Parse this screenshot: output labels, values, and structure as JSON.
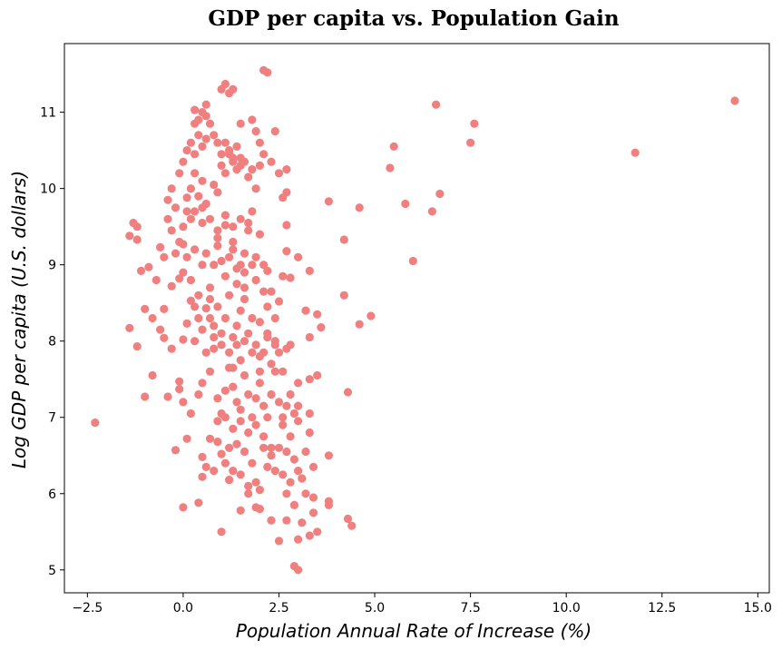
{
  "chart_data": {
    "type": "scatter",
    "title": "GDP per capita vs. Population Gain",
    "xlabel": "Population Annual Rate of Increase (%)",
    "ylabel": "Log GDP per capita (U.S. dollars)",
    "xlim": [
      -3.1,
      15.3
    ],
    "ylim": [
      4.7,
      11.9
    ],
    "x_ticks": [
      -2.5,
      0.0,
      2.5,
      5.0,
      7.5,
      10.0,
      12.5,
      15.0
    ],
    "x_tick_labels": [
      "−2.5",
      "0.0",
      "2.5",
      "5.0",
      "7.5",
      "10.0",
      "12.5",
      "15.0"
    ],
    "y_ticks": [
      5,
      6,
      7,
      8,
      9,
      10,
      11
    ],
    "y_tick_labels": [
      "5",
      "6",
      "7",
      "8",
      "9",
      "10",
      "11"
    ],
    "grid": false,
    "marker_color": "#f08080",
    "series": [
      {
        "name": "countries",
        "points": [
          [
            -2.3,
            6.93
          ],
          [
            -1.4,
            9.38
          ],
          [
            -1.3,
            9.55
          ],
          [
            -1.2,
            9.5
          ],
          [
            -1.2,
            9.33
          ],
          [
            -1.1,
            8.92
          ],
          [
            -1.0,
            8.42
          ],
          [
            -0.9,
            8.97
          ],
          [
            -0.8,
            8.3
          ],
          [
            -0.7,
            8.8
          ],
          [
            -0.6,
            9.23
          ],
          [
            -0.5,
            9.1
          ],
          [
            -0.4,
            9.85
          ],
          [
            -0.4,
            9.6
          ],
          [
            -0.3,
            9.45
          ],
          [
            -0.2,
            9.75
          ],
          [
            -0.1,
            9.3
          ],
          [
            0.0,
            9.5
          ],
          [
            0.1,
            9.7
          ],
          [
            0.2,
            9.6
          ],
          [
            -1.4,
            8.17
          ],
          [
            -1.2,
            7.93
          ],
          [
            -1.0,
            7.27
          ],
          [
            -0.8,
            7.55
          ],
          [
            -0.6,
            8.15
          ],
          [
            -0.5,
            8.04
          ],
          [
            -0.4,
            7.27
          ],
          [
            -0.3,
            7.9
          ],
          [
            -0.1,
            7.47
          ],
          [
            -0.1,
            7.37
          ],
          [
            -0.2,
            6.57
          ],
          [
            0.0,
            8.02
          ],
          [
            0.1,
            8.23
          ],
          [
            0.2,
            8.53
          ],
          [
            0.3,
            8.0
          ],
          [
            0.4,
            8.3
          ],
          [
            0.5,
            8.15
          ],
          [
            0.6,
            8.43
          ],
          [
            0.7,
            8.3
          ],
          [
            0.8,
            8.2
          ],
          [
            0.9,
            8.45
          ],
          [
            1.0,
            8.1
          ],
          [
            1.1,
            8.3
          ],
          [
            1.2,
            8.6
          ],
          [
            1.3,
            8.05
          ],
          [
            1.4,
            8.2
          ],
          [
            1.5,
            8.4
          ],
          [
            1.6,
            8.55
          ],
          [
            1.7,
            8.1
          ],
          [
            1.8,
            8.3
          ],
          [
            0.0,
            8.9
          ],
          [
            0.1,
            9.1
          ],
          [
            0.2,
            8.8
          ],
          [
            0.3,
            9.2
          ],
          [
            0.4,
            8.6
          ],
          [
            0.5,
            9.0
          ],
          [
            0.6,
            9.15
          ],
          [
            0.7,
            8.7
          ],
          [
            0.8,
            9.0
          ],
          [
            0.9,
            9.25
          ],
          [
            1.0,
            9.05
          ],
          [
            1.1,
            8.85
          ],
          [
            1.2,
            9.1
          ],
          [
            1.3,
            9.3
          ],
          [
            1.4,
            8.95
          ],
          [
            1.5,
            9.0
          ],
          [
            1.6,
            8.7
          ],
          [
            1.7,
            9.45
          ],
          [
            1.8,
            9.0
          ],
          [
            1.9,
            8.8
          ],
          [
            0.0,
            10.35
          ],
          [
            0.1,
            10.5
          ],
          [
            0.2,
            10.6
          ],
          [
            0.3,
            10.45
          ],
          [
            0.4,
            10.7
          ],
          [
            0.5,
            10.55
          ],
          [
            0.6,
            10.65
          ],
          [
            0.3,
            10.85
          ],
          [
            0.4,
            10.9
          ],
          [
            0.5,
            11.0
          ],
          [
            0.6,
            10.95
          ],
          [
            0.7,
            10.85
          ],
          [
            0.8,
            10.7
          ],
          [
            0.9,
            10.6
          ],
          [
            1.0,
            10.45
          ],
          [
            1.1,
            10.6
          ],
          [
            1.2,
            10.5
          ],
          [
            1.3,
            10.35
          ],
          [
            1.4,
            10.55
          ],
          [
            1.5,
            10.4
          ],
          [
            0.3,
            11.03
          ],
          [
            0.6,
            11.1
          ],
          [
            1.0,
            11.3
          ],
          [
            1.1,
            11.37
          ],
          [
            1.2,
            11.25
          ],
          [
            1.3,
            11.3
          ],
          [
            1.5,
            10.85
          ],
          [
            1.8,
            10.9
          ],
          [
            1.9,
            10.75
          ],
          [
            2.0,
            10.6
          ],
          [
            0.2,
            10.0
          ],
          [
            0.3,
            10.2
          ],
          [
            0.4,
            9.9
          ],
          [
            0.5,
            10.1
          ],
          [
            0.6,
            9.8
          ],
          [
            0.8,
            10.05
          ],
          [
            0.9,
            9.95
          ],
          [
            1.0,
            10.3
          ],
          [
            1.1,
            10.2
          ],
          [
            1.2,
            10.45
          ],
          [
            1.3,
            10.4
          ],
          [
            1.4,
            10.25
          ],
          [
            1.5,
            10.3
          ],
          [
            1.6,
            10.35
          ],
          [
            1.7,
            10.15
          ],
          [
            1.8,
            10.25
          ],
          [
            1.9,
            10.0
          ],
          [
            2.0,
            10.3
          ],
          [
            2.1,
            10.45
          ],
          [
            2.3,
            10.35
          ],
          [
            2.1,
            11.55
          ],
          [
            2.2,
            11.52
          ],
          [
            2.4,
            10.75
          ],
          [
            2.5,
            10.2
          ],
          [
            2.6,
            9.88
          ],
          [
            2.7,
            10.25
          ],
          [
            2.7,
            9.95
          ],
          [
            2.7,
            9.52
          ],
          [
            2.7,
            9.18
          ],
          [
            2.8,
            8.83
          ],
          [
            3.0,
            9.1
          ],
          [
            2.6,
            8.85
          ],
          [
            2.5,
            8.52
          ],
          [
            2.4,
            8.3
          ],
          [
            2.3,
            8.65
          ],
          [
            2.2,
            8.45
          ],
          [
            2.1,
            8.65
          ],
          [
            2.0,
            8.25
          ],
          [
            2.2,
            8.1
          ],
          [
            2.4,
            8.0
          ],
          [
            0.0,
            7.2
          ],
          [
            0.2,
            7.05
          ],
          [
            0.4,
            7.3
          ],
          [
            0.5,
            7.45
          ],
          [
            0.6,
            7.85
          ],
          [
            0.7,
            7.6
          ],
          [
            0.8,
            7.9
          ],
          [
            0.9,
            7.25
          ],
          [
            1.0,
            7.05
          ],
          [
            1.1,
            7.35
          ],
          [
            1.2,
            7.65
          ],
          [
            1.3,
            7.4
          ],
          [
            1.4,
            7.2
          ],
          [
            1.5,
            7.1
          ],
          [
            1.6,
            7.55
          ],
          [
            1.7,
            7.3
          ],
          [
            1.8,
            7.0
          ],
          [
            1.9,
            7.25
          ],
          [
            2.0,
            7.45
          ],
          [
            2.1,
            7.15
          ],
          [
            2.2,
            7.0
          ],
          [
            2.3,
            7.3
          ],
          [
            2.4,
            7.6
          ],
          [
            2.5,
            7.2
          ],
          [
            2.6,
            7.0
          ],
          [
            2.7,
            7.15
          ],
          [
            2.8,
            7.3
          ],
          [
            2.9,
            7.05
          ],
          [
            3.0,
            7.15
          ],
          [
            3.3,
            7.05
          ],
          [
            2.0,
            7.6
          ],
          [
            2.1,
            7.85
          ],
          [
            2.2,
            8.05
          ],
          [
            2.3,
            7.7
          ],
          [
            2.4,
            7.95
          ],
          [
            2.5,
            7.85
          ],
          [
            2.6,
            7.6
          ],
          [
            2.7,
            7.9
          ],
          [
            2.8,
            7.95
          ],
          [
            3.0,
            7.45
          ],
          [
            3.3,
            7.5
          ],
          [
            3.5,
            7.55
          ],
          [
            3.3,
            8.05
          ],
          [
            3.2,
            8.4
          ],
          [
            3.5,
            8.35
          ],
          [
            3.6,
            8.18
          ],
          [
            3.3,
            8.92
          ],
          [
            3.8,
            9.83
          ],
          [
            4.2,
            9.33
          ],
          [
            4.2,
            8.6
          ],
          [
            4.3,
            7.33
          ],
          [
            4.6,
            8.22
          ],
          [
            4.9,
            8.33
          ],
          [
            4.6,
            9.75
          ],
          [
            5.4,
            10.27
          ],
          [
            5.5,
            10.55
          ],
          [
            5.8,
            9.8
          ],
          [
            6.0,
            9.05
          ],
          [
            6.5,
            9.7
          ],
          [
            6.6,
            11.1
          ],
          [
            6.7,
            9.93
          ],
          [
            7.5,
            10.6
          ],
          [
            7.6,
            10.85
          ],
          [
            11.8,
            10.47
          ],
          [
            14.4,
            11.15
          ],
          [
            0.0,
            5.82
          ],
          [
            0.4,
            5.88
          ],
          [
            0.5,
            6.48
          ],
          [
            0.6,
            6.35
          ],
          [
            0.7,
            6.72
          ],
          [
            0.8,
            6.3
          ],
          [
            0.9,
            6.68
          ],
          [
            1.0,
            6.52
          ],
          [
            1.1,
            6.4
          ],
          [
            1.2,
            6.6
          ],
          [
            1.3,
            6.3
          ],
          [
            1.4,
            6.65
          ],
          [
            1.5,
            6.25
          ],
          [
            1.6,
            6.55
          ],
          [
            1.7,
            6.1
          ],
          [
            1.8,
            6.4
          ],
          [
            1.9,
            6.15
          ],
          [
            2.0,
            6.05
          ],
          [
            2.1,
            6.6
          ],
          [
            2.2,
            6.35
          ],
          [
            1.0,
            5.5
          ],
          [
            1.2,
            6.18
          ],
          [
            1.5,
            5.78
          ],
          [
            1.7,
            6.0
          ],
          [
            1.9,
            5.82
          ],
          [
            2.0,
            5.8
          ],
          [
            2.3,
            5.65
          ],
          [
            2.5,
            5.38
          ],
          [
            2.7,
            5.65
          ],
          [
            2.9,
            5.05
          ],
          [
            3.0,
            5.0
          ],
          [
            3.0,
            5.4
          ],
          [
            3.1,
            5.62
          ],
          [
            3.3,
            5.45
          ],
          [
            3.5,
            5.5
          ],
          [
            3.8,
            5.85
          ],
          [
            4.3,
            5.67
          ],
          [
            4.4,
            5.58
          ],
          [
            3.8,
            6.5
          ],
          [
            3.4,
            5.95
          ],
          [
            2.3,
            6.5
          ],
          [
            2.4,
            6.3
          ],
          [
            2.5,
            6.6
          ],
          [
            2.6,
            6.25
          ],
          [
            2.7,
            6.55
          ],
          [
            2.8,
            6.15
          ],
          [
            2.9,
            6.45
          ],
          [
            3.0,
            6.3
          ],
          [
            3.1,
            6.2
          ],
          [
            3.2,
            6.55
          ],
          [
            3.3,
            6.8
          ],
          [
            3.4,
            6.35
          ],
          [
            2.6,
            6.9
          ],
          [
            2.8,
            6.75
          ],
          [
            3.0,
            6.95
          ],
          [
            2.7,
            6.0
          ],
          [
            2.9,
            5.85
          ],
          [
            3.2,
            6.0
          ],
          [
            3.4,
            5.75
          ],
          [
            3.8,
            5.9
          ],
          [
            -0.5,
            8.42
          ],
          [
            -0.3,
            8.72
          ],
          [
            -0.1,
            8.82
          ],
          [
            0.3,
            8.45
          ],
          [
            0.7,
            8.55
          ],
          [
            1.1,
            9.52
          ],
          [
            1.5,
            9.6
          ],
          [
            1.7,
            9.55
          ],
          [
            2.0,
            9.4
          ],
          [
            0.5,
            9.55
          ],
          [
            0.0,
            9.27
          ],
          [
            -0.2,
            9.15
          ],
          [
            0.9,
            9.35
          ],
          [
            1.3,
            9.2
          ],
          [
            1.6,
            9.15
          ],
          [
            1.9,
            9.1
          ],
          [
            2.1,
            9.0
          ],
          [
            2.2,
            8.92
          ],
          [
            1.4,
            8.75
          ],
          [
            1.6,
            8.9
          ],
          [
            0.8,
            8.05
          ],
          [
            1.0,
            7.95
          ],
          [
            1.2,
            7.85
          ],
          [
            1.4,
            7.95
          ],
          [
            1.6,
            8.0
          ],
          [
            1.8,
            7.85
          ],
          [
            1.9,
            7.95
          ],
          [
            2.0,
            7.8
          ],
          [
            1.5,
            7.75
          ],
          [
            1.3,
            7.65
          ],
          [
            0.1,
            6.72
          ],
          [
            0.5,
            6.22
          ],
          [
            0.9,
            6.95
          ],
          [
            1.1,
            7.0
          ],
          [
            1.3,
            6.85
          ],
          [
            1.5,
            6.95
          ],
          [
            1.7,
            6.8
          ],
          [
            1.9,
            6.9
          ],
          [
            2.1,
            6.75
          ],
          [
            2.3,
            6.6
          ],
          [
            -0.3,
            10.0
          ],
          [
            -0.1,
            10.2
          ],
          [
            0.1,
            9.88
          ],
          [
            0.3,
            9.7
          ],
          [
            0.5,
            9.75
          ],
          [
            0.7,
            9.6
          ],
          [
            0.9,
            9.45
          ],
          [
            1.1,
            9.65
          ],
          [
            1.3,
            9.5
          ],
          [
            1.8,
            9.7
          ]
        ]
      }
    ]
  }
}
